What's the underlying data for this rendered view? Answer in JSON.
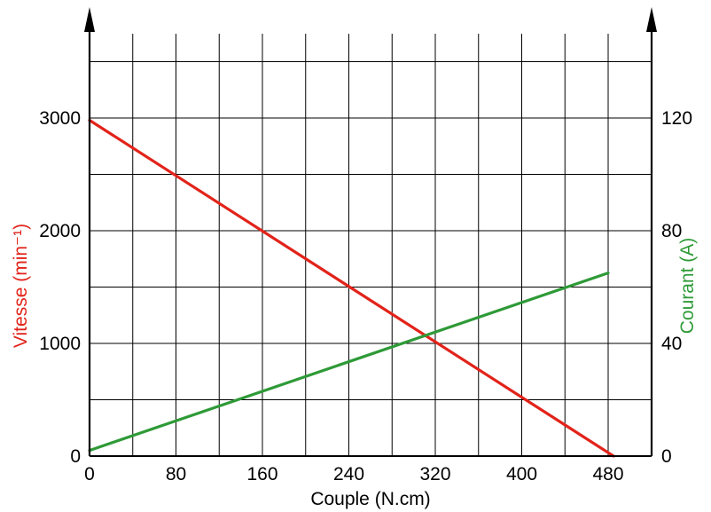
{
  "chart_data": {
    "type": "line",
    "xlabel": "Couple (N.cm)",
    "xlim": [
      0,
      520
    ],
    "x_ticks": [
      "0",
      "80",
      "160",
      "240",
      "320",
      "400",
      "480"
    ],
    "x_tick_values": [
      0,
      80,
      160,
      240,
      320,
      400,
      480
    ],
    "ylabel_left": "Vitesse (min⁻¹)",
    "ylim_left": [
      0,
      3000
    ],
    "y_ticks_left": [
      "0",
      "1000",
      "2000",
      "3000"
    ],
    "y_tick_values_left": [
      0,
      1000,
      2000,
      3000
    ],
    "ylabel_right": "Courant (A)",
    "ylim_right": [
      0,
      120
    ],
    "y_ticks_right": [
      "0",
      "40",
      "80",
      "120"
    ],
    "y_tick_values_right": [
      0,
      40,
      80,
      120
    ],
    "grid": true,
    "series": [
      {
        "axis": "left",
        "color": "#e2231a",
        "x": [
          0,
          485
        ],
        "values": [
          2980,
          0
        ]
      },
      {
        "axis": "right",
        "color": "#2e9a37",
        "x": [
          0,
          480
        ],
        "values": [
          2,
          65
        ]
      }
    ]
  }
}
